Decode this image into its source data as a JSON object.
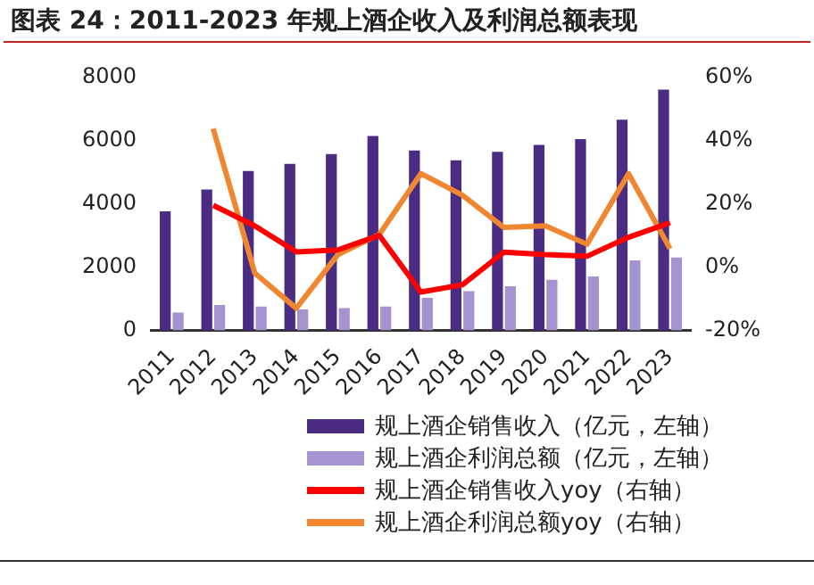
{
  "chart_data": {
    "type": "bar",
    "title": "图表 24：2011-2023 年规上酒企收入及利润总额表现",
    "categories": [
      "2011",
      "2012",
      "2013",
      "2014",
      "2015",
      "2016",
      "2017",
      "2018",
      "2019",
      "2020",
      "2021",
      "2022",
      "2023"
    ],
    "series": [
      {
        "name": "规上酒企销售收入（亿元，左轴）",
        "color": "#4b2c83",
        "values": [
          3760,
          4450,
          5030,
          5260,
          5570,
          6140,
          5680,
          5370,
          5640,
          5860,
          6040,
          6650,
          7600
        ]
      },
      {
        "name": "规上酒企利润总额（亿元，左轴）",
        "color": "#a593cf",
        "values": [
          560,
          800,
          750,
          660,
          700,
          750,
          1030,
          1240,
          1390,
          1600,
          1700,
          2210,
          2300
        ]
      },
      {
        "name": "规上酒企销售收入yoy（右轴）",
        "type": "line",
        "axis": "y2",
        "color": "#ff0000",
        "values": [
          null,
          19.5,
          13,
          4.8,
          5.4,
          10,
          -7.9,
          -5.6,
          4.7,
          3.9,
          3.4,
          9.4,
          14
        ]
      },
      {
        "name": "规上酒企利润总额yoy（右轴）",
        "type": "line",
        "axis": "y2",
        "color": "#f0862f",
        "values": [
          null,
          43.7,
          -1.9,
          -13,
          3.9,
          10.3,
          29.5,
          22.7,
          12.5,
          13,
          7.2,
          29.5,
          5.8
        ]
      }
    ],
    "ylim": [
      0,
      8000
    ],
    "yticks": [
      0,
      2000,
      4000,
      6000,
      8000
    ],
    "y2lim": [
      -20,
      60
    ],
    "y2ticks": [
      {
        "value": -20,
        "label": "-20%"
      },
      {
        "value": 0,
        "label": "0%"
      },
      {
        "value": 20,
        "label": "20%"
      },
      {
        "value": 40,
        "label": "40%"
      },
      {
        "value": 60,
        "label": "60%"
      }
    ],
    "grid": false,
    "legend": "bottom",
    "marker": "none",
    "line_style": "solid"
  }
}
